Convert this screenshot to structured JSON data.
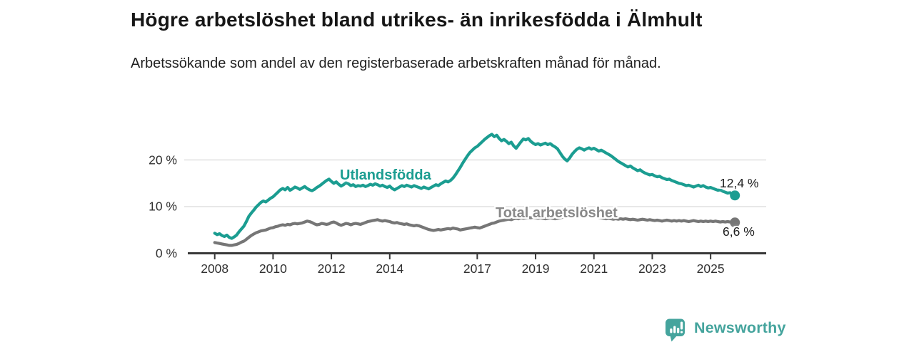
{
  "header": {
    "title": "Högre arbetslöshet bland utrikes- än inrikesfödda i Älmhult",
    "subtitle": "Arbetssökande som andel av den registerbaserade arbetskraften månad för månad."
  },
  "chart_data": {
    "type": "line",
    "title": "Högre arbetslöshet bland utrikes- än inrikesfödda i Älmhult",
    "subtitle": "Arbetssökande som andel av den registerbaserade arbetskraften månad för månad.",
    "x_unit": "months, decimal years",
    "x_start_year": 2008.0,
    "x_step_years": 0.0833333,
    "xlim": [
      2007.1,
      26.9
    ],
    "ylim": [
      0,
      27
    ],
    "grid": "horizontal",
    "legend_position": "inline-labels",
    "x_ticks": [
      {
        "value": 2008,
        "label": "2008"
      },
      {
        "value": 2010,
        "label": "2010"
      },
      {
        "value": 2012,
        "label": "2012"
      },
      {
        "value": 2014,
        "label": "2014"
      },
      {
        "value": 2017,
        "label": "2017"
      },
      {
        "value": 2019,
        "label": "2019"
      },
      {
        "value": 2021,
        "label": "2021"
      },
      {
        "value": 2023,
        "label": "2023"
      },
      {
        "value": 2025,
        "label": "2025"
      }
    ],
    "y_ticks": [
      {
        "value": 0,
        "label": "0 %"
      },
      {
        "value": 10,
        "label": "10 %"
      },
      {
        "value": 20,
        "label": "20 %"
      }
    ],
    "series": [
      {
        "name": "Utlandsfödda",
        "color": "#1b9d91",
        "end_label": "12,4 %",
        "end_value": 12.4,
        "values": [
          4.3,
          4.0,
          4.2,
          3.8,
          3.6,
          3.9,
          3.4,
          3.2,
          3.5,
          3.9,
          4.6,
          5.2,
          5.8,
          6.8,
          7.9,
          8.6,
          9.2,
          9.9,
          10.4,
          10.9,
          11.2,
          11.0,
          11.4,
          11.8,
          12.1,
          12.6,
          13.1,
          13.6,
          13.9,
          13.6,
          14.1,
          13.5,
          13.8,
          14.2,
          14.0,
          13.7,
          14.0,
          14.3,
          13.9,
          13.6,
          13.4,
          13.7,
          14.1,
          14.4,
          14.8,
          15.2,
          15.6,
          15.9,
          15.4,
          15.0,
          15.3,
          14.8,
          14.4,
          14.7,
          15.1,
          14.9,
          14.5,
          14.7,
          14.3,
          14.5,
          14.4,
          14.6,
          14.3,
          14.5,
          14.8,
          14.6,
          14.9,
          14.7,
          14.4,
          14.6,
          14.3,
          14.1,
          14.4,
          13.9,
          13.6,
          13.9,
          14.2,
          14.5,
          14.3,
          14.6,
          14.4,
          14.2,
          14.5,
          14.3,
          14.1,
          13.9,
          14.2,
          14.0,
          13.8,
          14.1,
          14.4,
          14.7,
          14.5,
          14.9,
          15.2,
          15.5,
          15.3,
          15.6,
          16.1,
          16.8,
          17.6,
          18.4,
          19.3,
          20.1,
          20.9,
          21.6,
          22.1,
          22.6,
          22.9,
          23.4,
          23.9,
          24.4,
          24.8,
          25.2,
          25.5,
          25.0,
          25.3,
          24.6,
          24.1,
          24.4,
          24.0,
          23.5,
          23.8,
          23.0,
          22.5,
          23.2,
          23.9,
          24.5,
          24.3,
          24.6,
          24.0,
          23.6,
          23.3,
          23.5,
          23.2,
          23.4,
          23.6,
          23.3,
          23.5,
          23.1,
          22.8,
          22.4,
          21.6,
          20.8,
          20.2,
          19.8,
          20.4,
          21.2,
          21.8,
          22.3,
          22.6,
          22.4,
          22.1,
          22.4,
          22.6,
          22.3,
          22.5,
          22.2,
          21.9,
          22.1,
          21.8,
          21.5,
          21.2,
          20.9,
          20.5,
          20.1,
          19.7,
          19.4,
          19.1,
          18.8,
          18.5,
          18.7,
          18.3,
          18.0,
          17.7,
          17.9,
          17.5,
          17.2,
          17.0,
          16.8,
          16.9,
          16.6,
          16.4,
          16.5,
          16.2,
          16.0,
          15.8,
          15.9,
          15.6,
          15.4,
          15.2,
          15.0,
          14.9,
          14.7,
          14.5,
          14.6,
          14.4,
          14.2,
          14.4,
          14.6,
          14.3,
          14.5,
          14.2,
          14.0,
          14.1,
          13.9,
          13.7,
          13.5,
          13.6,
          13.3,
          13.1,
          12.9,
          13.0,
          12.7,
          12.4
        ]
      },
      {
        "name": "Total arbetslöshet",
        "color": "#767676",
        "end_label": "6,6 %",
        "end_value": 6.6,
        "values": [
          2.3,
          2.2,
          2.1,
          2.0,
          1.9,
          1.8,
          1.7,
          1.7,
          1.8,
          1.9,
          2.1,
          2.4,
          2.6,
          3.0,
          3.4,
          3.8,
          4.1,
          4.4,
          4.6,
          4.8,
          4.9,
          5.0,
          5.2,
          5.4,
          5.5,
          5.7,
          5.8,
          6.0,
          6.1,
          6.0,
          6.2,
          6.1,
          6.3,
          6.4,
          6.3,
          6.4,
          6.5,
          6.7,
          6.9,
          6.8,
          6.6,
          6.3,
          6.1,
          6.2,
          6.4,
          6.3,
          6.2,
          6.3,
          6.6,
          6.7,
          6.5,
          6.2,
          6.0,
          6.2,
          6.4,
          6.3,
          6.1,
          6.3,
          6.4,
          6.3,
          6.2,
          6.4,
          6.6,
          6.8,
          6.9,
          7.0,
          7.1,
          7.2,
          7.0,
          6.9,
          7.0,
          6.9,
          6.8,
          6.6,
          6.5,
          6.6,
          6.4,
          6.3,
          6.2,
          6.3,
          6.1,
          6.0,
          5.9,
          6.0,
          5.9,
          5.7,
          5.5,
          5.3,
          5.1,
          5.0,
          4.9,
          5.0,
          5.1,
          5.0,
          5.1,
          5.2,
          5.3,
          5.2,
          5.4,
          5.3,
          5.2,
          5.0,
          5.1,
          5.2,
          5.3,
          5.4,
          5.5,
          5.6,
          5.5,
          5.4,
          5.6,
          5.8,
          6.0,
          6.2,
          6.4,
          6.5,
          6.7,
          6.9,
          7.0,
          7.1,
          7.2,
          7.3,
          7.2,
          7.4,
          7.5,
          7.4,
          7.6,
          7.5,
          7.6,
          7.7,
          7.6,
          7.7,
          7.6,
          7.5,
          7.6,
          7.5,
          7.4,
          7.5,
          7.6,
          7.5,
          7.4,
          7.5,
          7.6,
          7.7,
          7.8,
          7.9,
          8.1,
          8.3,
          8.4,
          8.5,
          8.4,
          8.3,
          8.2,
          8.1,
          8.0,
          7.9,
          7.9,
          7.8,
          7.7,
          7.6,
          7.5,
          7.4,
          7.5,
          7.4,
          7.3,
          7.4,
          7.3,
          7.4,
          7.3,
          7.4,
          7.3,
          7.2,
          7.3,
          7.2,
          7.1,
          7.2,
          7.3,
          7.2,
          7.1,
          7.2,
          7.1,
          7.0,
          7.1,
          7.0,
          6.9,
          7.0,
          7.1,
          7.0,
          6.9,
          7.0,
          6.9,
          7.0,
          6.9,
          7.0,
          6.9,
          6.8,
          6.9,
          7.0,
          6.9,
          6.8,
          6.9,
          6.8,
          6.9,
          6.8,
          6.9,
          6.8,
          6.9,
          6.8,
          6.7,
          6.8,
          6.7,
          6.8,
          6.7,
          6.6,
          6.6
        ]
      }
    ],
    "colors": {
      "axis": "#383838",
      "gridline": "#d9d9d9",
      "accent_teal": "#1b9d91",
      "gray": "#767676"
    }
  },
  "footer": {
    "brand": "Newsworthy",
    "brand_color": "#45a49d",
    "logo_icon": "bar-chart-speech-bubble-icon"
  }
}
